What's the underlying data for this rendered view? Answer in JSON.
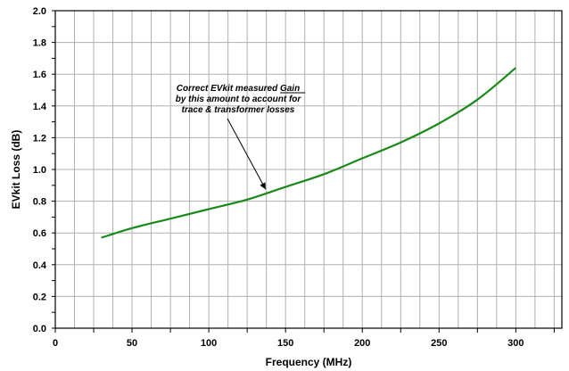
{
  "chart_data": {
    "type": "line",
    "title": "",
    "xlabel": "Frequency (MHz)",
    "ylabel": "EVkit Loss (dB)",
    "xlim": [
      0,
      330
    ],
    "ylim": [
      0.0,
      2.0
    ],
    "x_ticks": [
      0,
      50,
      100,
      150,
      200,
      250,
      300
    ],
    "x_tick_labels": [
      "0",
      "50",
      "100",
      "150",
      "200",
      "250",
      "300"
    ],
    "y_ticks": [
      0.0,
      0.2,
      0.4,
      0.6,
      0.8,
      1.0,
      1.2,
      1.4,
      1.6,
      1.8,
      2.0
    ],
    "y_tick_labels": [
      "0.0",
      "0.2",
      "0.4",
      "0.6",
      "0.8",
      "1.0",
      "1.2",
      "1.4",
      "1.6",
      "1.8",
      "2.0"
    ],
    "grid": true,
    "legend": "none",
    "series": [
      {
        "color": "#1a8a1a",
        "x": [
          30,
          50,
          75,
          100,
          125,
          150,
          175,
          200,
          225,
          250,
          275,
          300
        ],
        "y": [
          0.57,
          0.63,
          0.69,
          0.75,
          0.81,
          0.89,
          0.97,
          1.07,
          1.17,
          1.29,
          1.44,
          1.64
        ]
      }
    ],
    "annotation": {
      "lines": [
        "Correct EVkit measured  Gain",
        "by this amount to account for",
        "trace & transformer losses"
      ],
      "underlined_word": "Gain",
      "arrow_target": [
        137,
        0.875
      ]
    }
  }
}
